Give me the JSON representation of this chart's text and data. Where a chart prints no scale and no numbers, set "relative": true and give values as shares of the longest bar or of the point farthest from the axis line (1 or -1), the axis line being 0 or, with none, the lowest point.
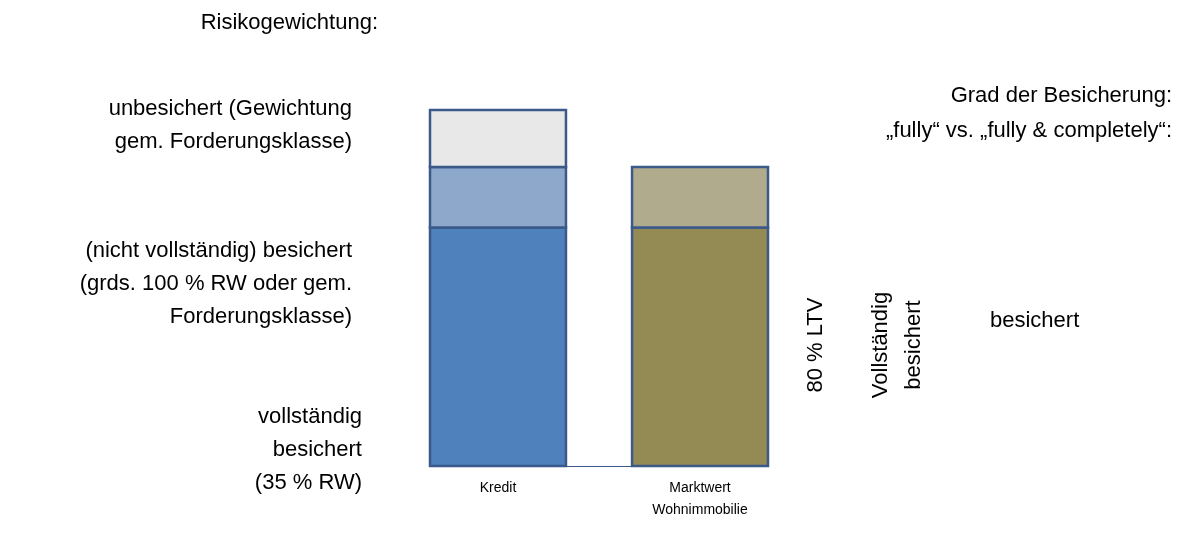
{
  "chart_data": {
    "type": "bar",
    "stacked": true,
    "relative": true,
    "categories": [
      "Kredit",
      "Marktwert Wohnimmobilie"
    ],
    "series": [
      {
        "colors": [
          "#4f81bd",
          "#948a54"
        ],
        "values": [
          0.67,
          0.67
        ]
      },
      {
        "colors": [
          "#8ea8cc",
          "#b0ab8c"
        ],
        "values": [
          0.17,
          0.17
        ]
      },
      {
        "colors": [
          "#e8e8e8",
          null
        ],
        "values": [
          0.16,
          null
        ]
      }
    ],
    "annotations": [
      "Risikogewichtung:",
      "unbesichert (Gewichtung\ngem. Forderungsklasse)",
      "(nicht vollständig) besichert\n(grds. 100 % RW oder gem.\nForderungsklasse)",
      "vollständig\nbesichert\n(35 % RW)",
      "Grad der Besicherung:",
      "„fully“ vs. „fully & completely“:",
      "80 % LTV",
      "Vollständig\nbesichert",
      "besichert"
    ]
  }
}
